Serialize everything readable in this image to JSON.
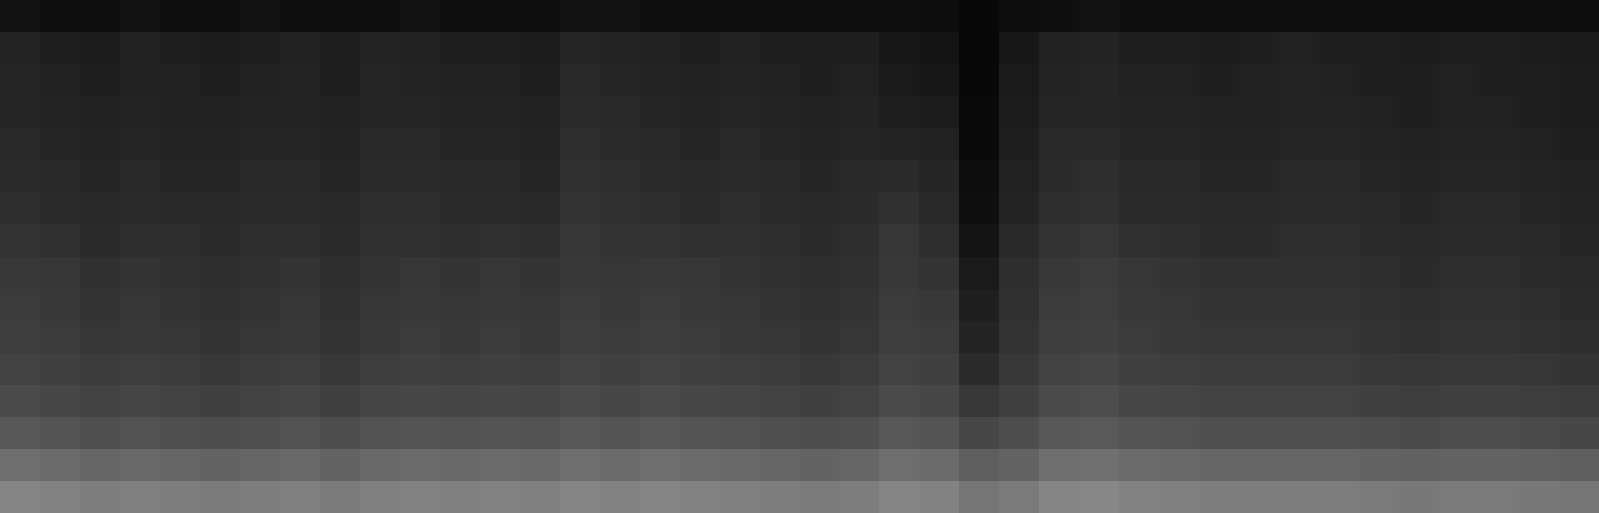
{
  "chart_data": {
    "type": "heatmap",
    "tick_labels": false,
    "zlim": [
      0,
      100
    ],
    "cells": [
      [
        7,
        6,
        6,
        7,
        6,
        6,
        7,
        6,
        6,
        6,
        7,
        6,
        6,
        6,
        7,
        7,
        6,
        6,
        6,
        6,
        6,
        6,
        6,
        5,
        3,
        5,
        6,
        7,
        6,
        6,
        6,
        6,
        6,
        6,
        6,
        6,
        6,
        6,
        6,
        5
      ],
      [
        14,
        12,
        11,
        13,
        12,
        11,
        12,
        13,
        12,
        14,
        13,
        12,
        12,
        11,
        15,
        14,
        13,
        12,
        13,
        12,
        12,
        12,
        9,
        8,
        3,
        9,
        13,
        14,
        12,
        12,
        11,
        12,
        13,
        12,
        12,
        11,
        12,
        12,
        11,
        10
      ],
      [
        15,
        13,
        12,
        13,
        13,
        12,
        13,
        14,
        12,
        15,
        14,
        13,
        13,
        12,
        16,
        15,
        14,
        13,
        14,
        13,
        12,
        13,
        10,
        9,
        3,
        10,
        14,
        15,
        13,
        13,
        12,
        13,
        14,
        13,
        12,
        12,
        13,
        12,
        12,
        11
      ],
      [
        15,
        14,
        13,
        14,
        13,
        13,
        14,
        14,
        13,
        15,
        15,
        14,
        14,
        13,
        17,
        16,
        15,
        14,
        15,
        14,
        13,
        14,
        12,
        11,
        4,
        11,
        15,
        15,
        14,
        14,
        13,
        13,
        14,
        14,
        13,
        12,
        13,
        13,
        12,
        11
      ],
      [
        16,
        15,
        14,
        15,
        14,
        14,
        15,
        15,
        14,
        16,
        16,
        15,
        15,
        14,
        18,
        17,
        16,
        15,
        16,
        15,
        14,
        15,
        14,
        13,
        4,
        12,
        16,
        16,
        15,
        15,
        14,
        14,
        15,
        15,
        14,
        13,
        14,
        14,
        13,
        12
      ],
      [
        17,
        16,
        15,
        16,
        15,
        15,
        16,
        16,
        15,
        17,
        17,
        16,
        16,
        15,
        19,
        18,
        17,
        16,
        17,
        16,
        15,
        16,
        17,
        15,
        5,
        13,
        17,
        18,
        16,
        16,
        15,
        15,
        16,
        16,
        15,
        14,
        15,
        15,
        14,
        13
      ],
      [
        18,
        17,
        16,
        17,
        16,
        16,
        17,
        17,
        16,
        18,
        18,
        17,
        17,
        16,
        20,
        19,
        18,
        17,
        18,
        17,
        16,
        17,
        19,
        16,
        6,
        14,
        18,
        19,
        17,
        17,
        16,
        16,
        17,
        17,
        16,
        15,
        16,
        16,
        15,
        14
      ],
      [
        20,
        19,
        17,
        18,
        18,
        17,
        18,
        18,
        17,
        19,
        19,
        18,
        19,
        18,
        21,
        20,
        20,
        19,
        19,
        18,
        17,
        18,
        21,
        18,
        8,
        16,
        20,
        21,
        19,
        18,
        17,
        17,
        18,
        18,
        17,
        16,
        17,
        17,
        16,
        15
      ],
      [
        22,
        21,
        19,
        20,
        19,
        18,
        19,
        20,
        18,
        20,
        21,
        20,
        21,
        20,
        22,
        21,
        22,
        21,
        20,
        19,
        18,
        19,
        22,
        20,
        10,
        18,
        22,
        23,
        21,
        20,
        19,
        19,
        19,
        19,
        18,
        17,
        18,
        18,
        17,
        16
      ],
      [
        23,
        22,
        20,
        21,
        20,
        19,
        20,
        21,
        19,
        21,
        22,
        21,
        22,
        21,
        23,
        22,
        23,
        22,
        21,
        20,
        19,
        20,
        23,
        22,
        12,
        19,
        23,
        24,
        22,
        21,
        20,
        20,
        20,
        20,
        19,
        18,
        19,
        19,
        18,
        17
      ],
      [
        24,
        23,
        21,
        22,
        21,
        20,
        21,
        22,
        20,
        22,
        23,
        22,
        23,
        22,
        24,
        23,
        24,
        23,
        22,
        21,
        20,
        21,
        24,
        23,
        14,
        20,
        24,
        25,
        23,
        22,
        21,
        21,
        21,
        21,
        20,
        19,
        20,
        20,
        19,
        18
      ],
      [
        26,
        25,
        23,
        24,
        23,
        22,
        23,
        24,
        22,
        24,
        25,
        24,
        25,
        24,
        26,
        25,
        26,
        25,
        24,
        23,
        22,
        23,
        26,
        25,
        17,
        22,
        26,
        27,
        25,
        24,
        23,
        23,
        23,
        23,
        22,
        21,
        22,
        22,
        21,
        20
      ],
      [
        29,
        28,
        26,
        27,
        26,
        25,
        26,
        27,
        25,
        27,
        28,
        27,
        28,
        27,
        29,
        28,
        29,
        28,
        27,
        26,
        25,
        26,
        29,
        28,
        22,
        25,
        29,
        30,
        28,
        27,
        26,
        26,
        26,
        26,
        25,
        24,
        25,
        25,
        24,
        23
      ],
      [
        34,
        33,
        31,
        32,
        31,
        30,
        31,
        32,
        30,
        32,
        33,
        32,
        33,
        32,
        34,
        33,
        34,
        33,
        32,
        31,
        30,
        31,
        34,
        33,
        28,
        30,
        34,
        35,
        33,
        32,
        31,
        31,
        31,
        31,
        30,
        29,
        30,
        30,
        29,
        28
      ],
      [
        43,
        42,
        40,
        41,
        40,
        39,
        40,
        41,
        39,
        41,
        42,
        41,
        42,
        41,
        43,
        42,
        43,
        42,
        41,
        40,
        39,
        40,
        43,
        42,
        37,
        39,
        43,
        44,
        42,
        41,
        40,
        40,
        40,
        40,
        39,
        38,
        39,
        39,
        38,
        37
      ],
      [
        52,
        51,
        49,
        50,
        49,
        48,
        49,
        50,
        48,
        50,
        51,
        50,
        51,
        50,
        52,
        51,
        52,
        51,
        50,
        49,
        48,
        49,
        52,
        51,
        46,
        48,
        52,
        53,
        51,
        50,
        49,
        49,
        49,
        49,
        48,
        47,
        48,
        48,
        47,
        46
      ]
    ]
  }
}
